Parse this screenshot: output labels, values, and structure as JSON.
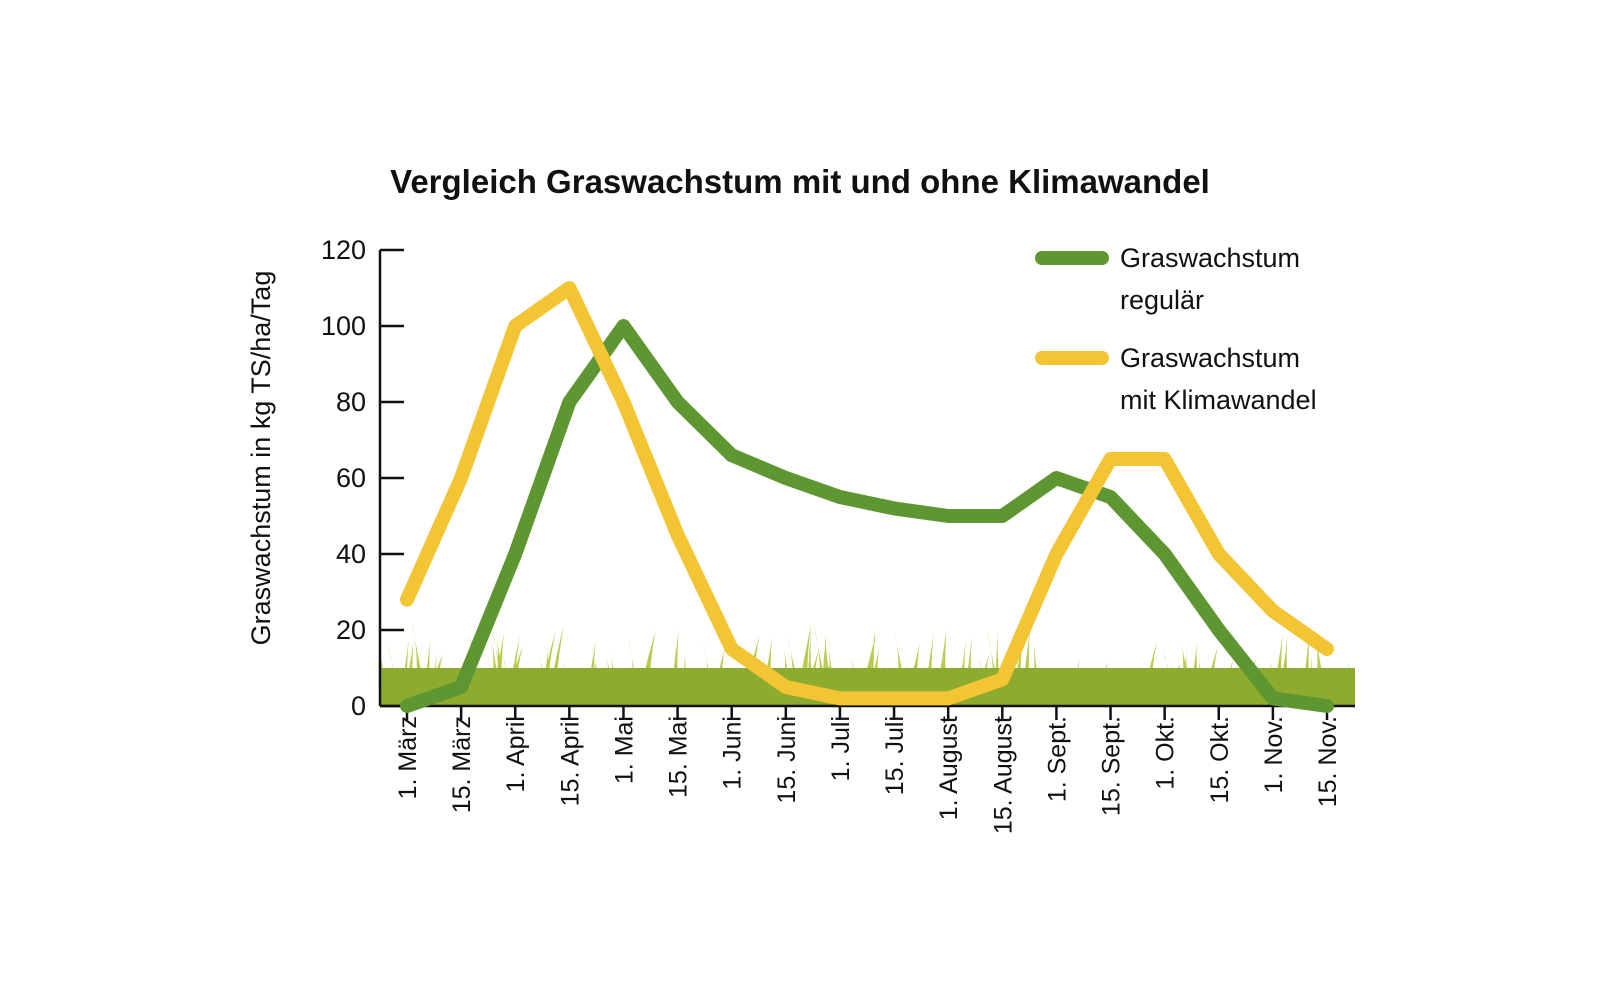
{
  "colors": {
    "regular": "#5e9732",
    "climate": "#f3c433",
    "grass_light": "#b7cc4f",
    "grass_dark": "#8cab2f"
  },
  "chart_data": {
    "type": "line",
    "title": "Vergleich Graswachstum mit und ohne Klimawandel",
    "xlabel": "",
    "ylabel": "Graswachstum in kg TS/ha/Tag",
    "categories": [
      "1. März",
      "15. März",
      "1. April",
      "15. April",
      "1. Mai",
      "15. Mai",
      "1. Juni",
      "15. Juni",
      "1. Juli",
      "15. Juli",
      "1. August",
      "15. August",
      "1. Sept.",
      "15. Sept.",
      "1. Okt.",
      "15. Okt.",
      "1. Nov.",
      "15. Nov."
    ],
    "ylim": [
      0,
      120
    ],
    "yticks": [
      0,
      20,
      40,
      60,
      80,
      100,
      120
    ],
    "legend_position": "top-right",
    "grid": false,
    "series": [
      {
        "name": "Graswachstum regulär",
        "legend_lines": [
          "Graswachstum",
          "regulär"
        ],
        "color": "#5e9732",
        "values": [
          0,
          5,
          40,
          80,
          100,
          80,
          66,
          60,
          55,
          52,
          50,
          50,
          60,
          55,
          40,
          20,
          2,
          0
        ]
      },
      {
        "name": "Graswachstum mit Klimawandel",
        "legend_lines": [
          "Graswachstum",
          "mit Klimawandel"
        ],
        "color": "#f3c433",
        "values": [
          28,
          60,
          100,
          110,
          80,
          45,
          15,
          5,
          2,
          2,
          2,
          7,
          40,
          65,
          65,
          40,
          25,
          15
        ]
      }
    ]
  }
}
